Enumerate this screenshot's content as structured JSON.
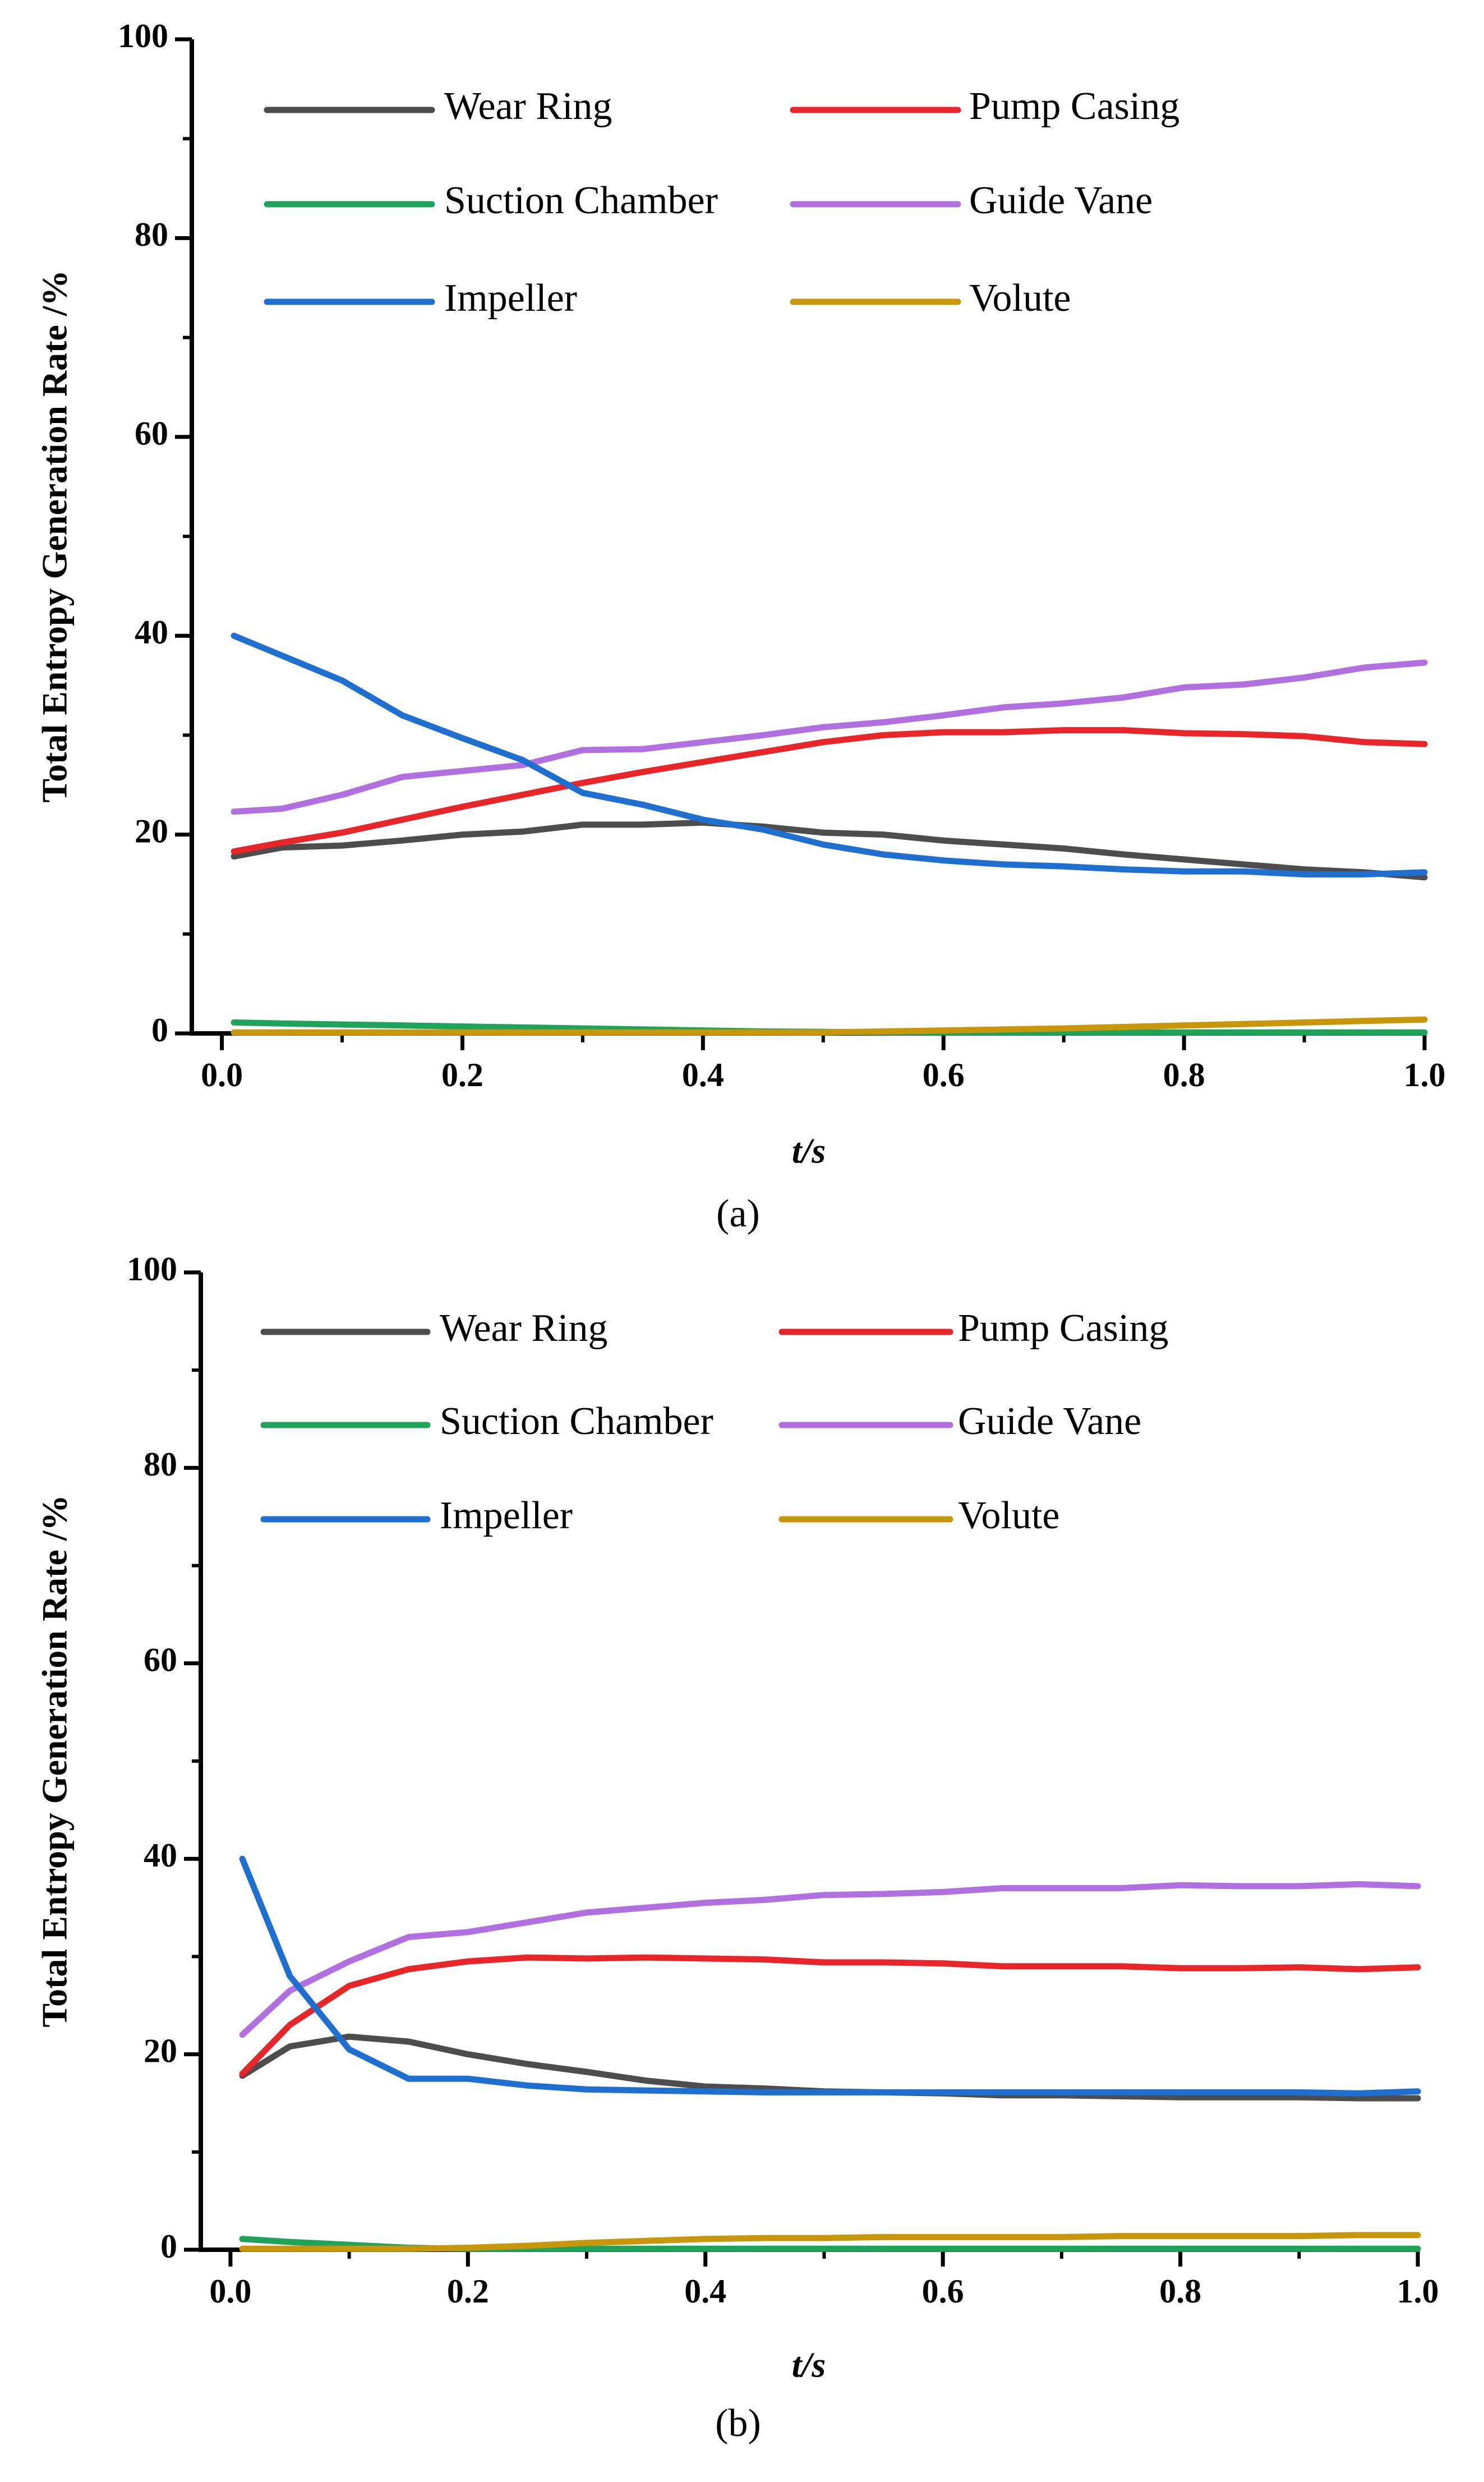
{
  "chart_data": [
    {
      "type": "line",
      "caption": "(a)",
      "x_label": "t/s",
      "y_label": "Total Entropy Generation Rate /%",
      "xlim": [
        -0.025,
        1.0
      ],
      "ylim": [
        0,
        100
      ],
      "xticks": [
        {
          "value": 0,
          "label": "0.0"
        },
        0.2,
        0.4,
        0.6,
        0.8,
        {
          "value": 1,
          "label": "1.0"
        }
      ],
      "yticks": [
        0,
        20,
        40,
        60,
        80,
        100
      ],
      "x": [
        0.01,
        0.05,
        0.1,
        0.15,
        0.2,
        0.25,
        0.3,
        0.35,
        0.4,
        0.45,
        0.5,
        0.55,
        0.6,
        0.65,
        0.7,
        0.75,
        0.8,
        0.85,
        0.9,
        0.95,
        1.0
      ],
      "series": [
        {
          "name": "Wear Ring",
          "color": "#4d4d4d",
          "values": [
            17.8,
            18.7,
            18.9,
            19.4,
            20,
            20.3,
            21,
            21,
            21.2,
            20.8,
            20.2,
            20,
            19.4,
            19,
            18.6,
            18,
            17.5,
            17,
            16.5,
            16.2,
            15.7
          ]
        },
        {
          "name": "Pump Casing",
          "color": "#e8262a",
          "values": [
            18.3,
            19.2,
            20.2,
            21.5,
            22.8,
            24,
            25.2,
            26.3,
            27.3,
            28.3,
            29.3,
            30,
            30.3,
            30.3,
            30.5,
            30.5,
            30.2,
            30.1,
            29.9,
            29.3,
            29.1
          ]
        },
        {
          "name": "Suction Chamber",
          "color": "#1fa35a",
          "values": [
            1.1,
            1.0,
            0.9,
            0.8,
            0.7,
            0.6,
            0.5,
            0.4,
            0.3,
            0.2,
            0.15,
            0.1,
            0.1,
            0.1,
            0.1,
            0.1,
            0.1,
            0.1,
            0.1,
            0.1,
            0.1
          ]
        },
        {
          "name": "Guide Vane",
          "color": "#b070e0",
          "values": [
            22.3,
            22.6,
            24,
            25.8,
            26.4,
            27,
            28.5,
            28.6,
            29.3,
            30,
            30.8,
            31.3,
            32,
            32.8,
            33.2,
            33.8,
            34.8,
            35.1,
            35.8,
            36.8,
            37.3
          ]
        },
        {
          "name": "Impeller",
          "color": "#1f6fd0",
          "values": [
            40,
            38,
            35.5,
            32,
            29.7,
            27.5,
            24.2,
            23,
            21.5,
            20.5,
            19,
            18,
            17.4,
            17,
            16.8,
            16.5,
            16.3,
            16.3,
            16,
            16,
            16.2
          ]
        },
        {
          "name": "Volute",
          "color": "#c8960a",
          "values": [
            0.1,
            0.1,
            0.1,
            0.1,
            0.1,
            0.1,
            0.1,
            0.1,
            0.1,
            0.1,
            0.1,
            0.2,
            0.3,
            0.4,
            0.5,
            0.65,
            0.8,
            0.95,
            1.1,
            1.25,
            1.4
          ]
        }
      ]
    },
    {
      "type": "line",
      "caption": "(b)",
      "x_label": "t/s",
      "y_label": "Total Entropy Generation Rate /%",
      "xlim": [
        -0.025,
        1.0
      ],
      "ylim": [
        0,
        100
      ],
      "xticks": [
        {
          "value": 0,
          "label": "0.0"
        },
        0.2,
        0.4,
        0.6,
        0.8,
        {
          "value": 1,
          "label": "1.0"
        }
      ],
      "yticks": [
        0,
        20,
        40,
        60,
        80,
        100
      ],
      "x": [
        0.01,
        0.05,
        0.1,
        0.15,
        0.2,
        0.25,
        0.3,
        0.35,
        0.4,
        0.45,
        0.5,
        0.55,
        0.6,
        0.65,
        0.7,
        0.75,
        0.8,
        0.85,
        0.9,
        0.95,
        1.0
      ],
      "series": [
        {
          "name": "Wear Ring",
          "color": "#4d4d4d",
          "values": [
            17.8,
            20.8,
            21.8,
            21.3,
            20,
            19,
            18.2,
            17.3,
            16.7,
            16.5,
            16.2,
            16.1,
            16,
            15.8,
            15.8,
            15.7,
            15.6,
            15.6,
            15.6,
            15.5,
            15.5
          ]
        },
        {
          "name": "Pump Casing",
          "color": "#e8262a",
          "values": [
            18,
            23,
            27,
            28.7,
            29.5,
            29.9,
            29.8,
            29.9,
            29.8,
            29.7,
            29.4,
            29.4,
            29.3,
            29,
            29,
            29,
            28.8,
            28.8,
            28.9,
            28.7,
            28.9
          ]
        },
        {
          "name": "Suction Chamber",
          "color": "#1fa35a",
          "values": [
            1.1,
            0.8,
            0.5,
            0.2,
            0.1,
            0.1,
            0.1,
            0.1,
            0.1,
            0.1,
            0.1,
            0.1,
            0.1,
            0.1,
            0.1,
            0.1,
            0.1,
            0.1,
            0.1,
            0.1,
            0.1
          ]
        },
        {
          "name": "Guide Vane",
          "color": "#b070e0",
          "values": [
            22,
            26.5,
            29.5,
            32,
            32.5,
            33.5,
            34.5,
            35,
            35.5,
            35.8,
            36.3,
            36.4,
            36.6,
            37,
            37,
            37,
            37.3,
            37.2,
            37.2,
            37.4,
            37.2
          ]
        },
        {
          "name": "Impeller",
          "color": "#1f6fd0",
          "values": [
            40,
            28,
            20.5,
            17.5,
            17.5,
            16.8,
            16.4,
            16.3,
            16.2,
            16.1,
            16.1,
            16.1,
            16.1,
            16.1,
            16.1,
            16.1,
            16.1,
            16.1,
            16.1,
            16.0,
            16.2
          ]
        },
        {
          "name": "Volute",
          "color": "#c8960a",
          "values": [
            0.1,
            0.1,
            0.1,
            0.1,
            0.2,
            0.4,
            0.7,
            0.9,
            1.1,
            1.2,
            1.2,
            1.3,
            1.3,
            1.3,
            1.3,
            1.4,
            1.4,
            1.4,
            1.4,
            1.5,
            1.5
          ]
        }
      ]
    }
  ]
}
